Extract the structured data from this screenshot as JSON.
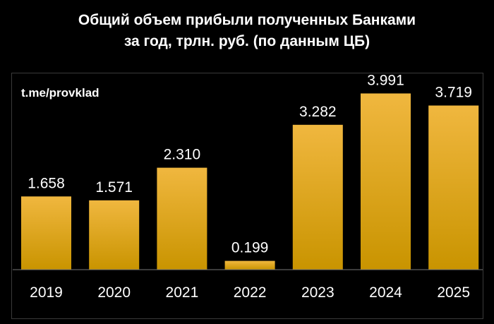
{
  "chart_data": {
    "type": "bar",
    "title_lines": [
      "Общий объем прибыли полученных Банками",
      "за год, трлн. руб. (по данным ЦБ)"
    ],
    "categories": [
      "2019",
      "2020",
      "2021",
      "2022",
      "2023",
      "2024",
      "2025"
    ],
    "values": [
      1.658,
      1.571,
      2.31,
      0.199,
      3.282,
      3.991,
      3.719
    ],
    "value_labels": [
      "1.658",
      "1.571",
      "2.310",
      "0.199",
      "3.282",
      "3.991",
      "3.719"
    ],
    "ylim": [
      0,
      4.35
    ],
    "grid": false,
    "colors": {
      "background": "#000000",
      "bar_top": "#f0b73f",
      "bar_bottom": "#c99400",
      "text": "#ffffff",
      "axis": "#777777"
    }
  },
  "watermark": "t.me/provklad"
}
